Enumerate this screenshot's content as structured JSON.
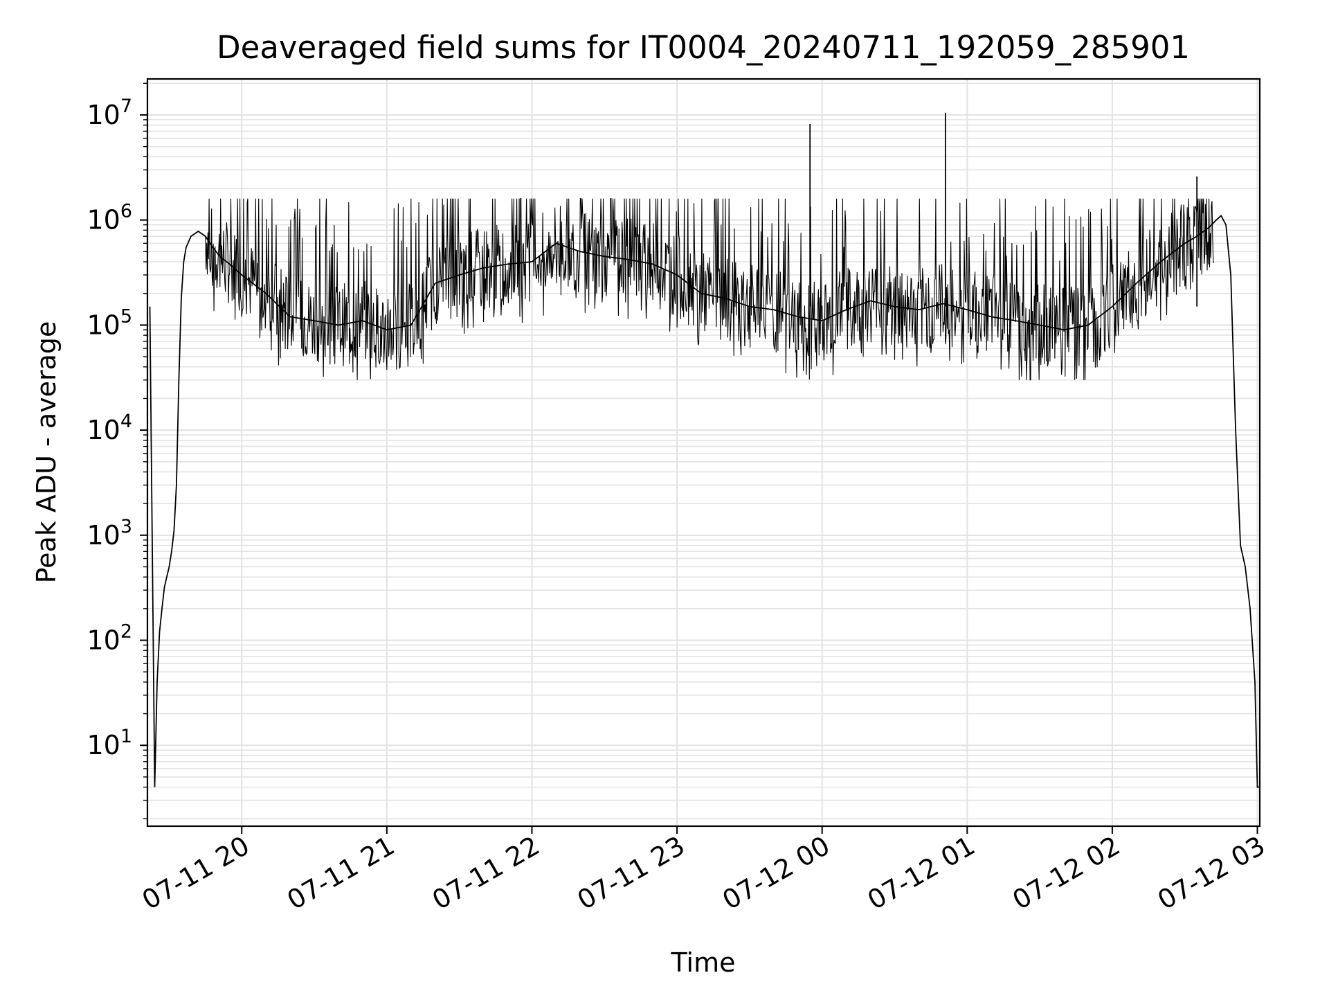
{
  "chart_data": {
    "type": "line",
    "title": "Deaveraged field sums for IT0004_20240711_192059_285901",
    "xlabel": "Time",
    "ylabel": "Peak ADU - average",
    "yscale": "log",
    "ylim": [
      1.7,
      22000000
    ],
    "xlim": [
      "2024-07-11 19:21",
      "2024-07-12 03:01"
    ],
    "grid": true,
    "line_color": "#000000",
    "grid_color": "#e3e3e3",
    "x_ticks": [
      {
        "t": "2024-07-11 20:00",
        "label": "07-11 20"
      },
      {
        "t": "2024-07-11 21:00",
        "label": "07-11 21"
      },
      {
        "t": "2024-07-11 22:00",
        "label": "07-11 22"
      },
      {
        "t": "2024-07-11 23:00",
        "label": "07-11 23"
      },
      {
        "t": "2024-07-12 00:00",
        "label": "07-12 00"
      },
      {
        "t": "2024-07-12 01:00",
        "label": "07-12 01"
      },
      {
        "t": "2024-07-12 02:00",
        "label": "07-12 02"
      },
      {
        "t": "2024-07-12 03:00",
        "label": "07-12 03"
      }
    ],
    "y_ticks": [
      {
        "value": 10,
        "base": "10",
        "exp": "1"
      },
      {
        "value": 100,
        "base": "10",
        "exp": "2"
      },
      {
        "value": 1000,
        "base": "10",
        "exp": "3"
      },
      {
        "value": 10000,
        "base": "10",
        "exp": "4"
      },
      {
        "value": 100000,
        "base": "10",
        "exp": "5"
      },
      {
        "value": 1000000,
        "base": "10",
        "exp": "6"
      },
      {
        "value": 10000000,
        "base": "10",
        "exp": "7"
      }
    ],
    "series": [
      {
        "x": [
          "2024-07-11 19:22",
          "2024-07-11 19:24",
          "2024-07-11 19:25",
          "2024-07-11 19:26",
          "2024-07-11 19:27",
          "2024-07-11 19:28",
          "2024-07-11 19:29",
          "2024-07-11 19:30",
          "2024-07-11 19:31",
          "2024-07-11 19:32",
          "2024-07-11 19:33",
          "2024-07-11 19:34",
          "2024-07-11 19:35",
          "2024-07-11 19:36",
          "2024-07-11 19:37",
          "2024-07-11 19:39",
          "2024-07-11 19:42",
          "2024-07-11 19:45",
          "2024-07-11 19:48",
          "2024-07-11 19:51",
          "2024-07-11 19:55",
          "2024-07-11 20:00",
          "2024-07-11 20:10",
          "2024-07-11 20:20",
          "2024-07-11 20:30",
          "2024-07-11 20:40",
          "2024-07-11 20:50",
          "2024-07-11 21:00",
          "2024-07-11 21:10",
          "2024-07-11 21:20",
          "2024-07-11 21:30",
          "2024-07-11 21:40",
          "2024-07-11 21:50",
          "2024-07-11 22:00",
          "2024-07-11 22:10",
          "2024-07-11 22:20",
          "2024-07-11 22:30",
          "2024-07-11 22:40",
          "2024-07-11 22:50",
          "2024-07-11 23:00",
          "2024-07-11 23:10",
          "2024-07-11 23:20",
          "2024-07-11 23:30",
          "2024-07-11 23:40",
          "2024-07-11 23:50",
          "2024-07-12 00:00",
          "2024-07-12 00:10",
          "2024-07-12 00:20",
          "2024-07-12 00:30",
          "2024-07-12 00:40",
          "2024-07-12 00:50",
          "2024-07-12 01:00",
          "2024-07-12 01:10",
          "2024-07-12 01:20",
          "2024-07-12 01:30",
          "2024-07-12 01:40",
          "2024-07-12 01:50",
          "2024-07-12 02:00",
          "2024-07-12 02:10",
          "2024-07-12 02:20",
          "2024-07-12 02:30",
          "2024-07-12 02:35",
          "2024-07-12 02:40",
          "2024-07-12 02:43",
          "2024-07-12 02:45",
          "2024-07-12 02:47",
          "2024-07-12 02:49",
          "2024-07-12 02:51",
          "2024-07-12 02:53",
          "2024-07-12 02:55",
          "2024-07-12 02:57",
          "2024-07-12 02:59",
          "2024-07-12 03:00",
          "2024-07-12 03:01"
        ],
        "y": [
          150000,
          4,
          40,
          120,
          200,
          320,
          400,
          500,
          700,
          1100,
          3000,
          30000,
          180000,
          400000,
          550000,
          700000,
          780000,
          700000,
          550000,
          450000,
          380000,
          300000,
          200000,
          120000,
          110000,
          100000,
          110000,
          90000,
          100000,
          250000,
          300000,
          350000,
          380000,
          400000,
          600000,
          500000,
          450000,
          420000,
          380000,
          300000,
          200000,
          180000,
          150000,
          140000,
          120000,
          110000,
          140000,
          170000,
          150000,
          140000,
          160000,
          140000,
          120000,
          110000,
          100000,
          90000,
          100000,
          150000,
          250000,
          400000,
          600000,
          700000,
          850000,
          1000000,
          1100000,
          900000,
          300000,
          10000,
          800,
          500,
          200,
          40,
          4,
          4
        ],
        "spikes": [
          {
            "x": "2024-07-11 23:55",
            "y": 8200000
          },
          {
            "x": "2024-07-12 00:51",
            "y": 10500000
          },
          {
            "x": "2024-07-12 02:35",
            "y": 2600000
          }
        ]
      }
    ]
  }
}
